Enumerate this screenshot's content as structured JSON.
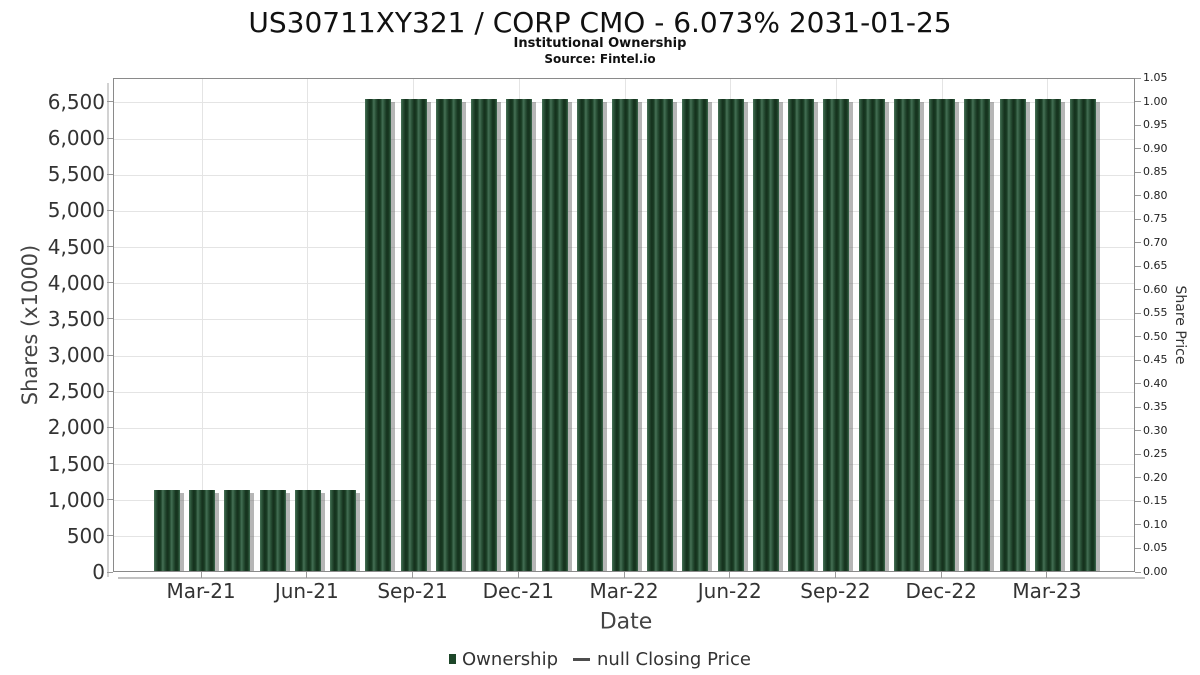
{
  "header": {
    "title": "US30711XY321 / CORP CMO - 6.073% 2031-01-25",
    "subtitle": "Institutional Ownership",
    "source": "Source: Fintel.io"
  },
  "legend": {
    "items": [
      {
        "label": "Ownership",
        "marker": "square",
        "color": "#1d4629"
      },
      {
        "label": "null Closing Price",
        "marker": "line",
        "color": "#4d4d4d"
      }
    ]
  },
  "colors": {
    "bar_dark_green": "#15311d",
    "bar_light_green": "#477257",
    "bar_shadow": "#6e6e6e",
    "gridline": "#e4e4e4",
    "plot_border": "#8a8a8a",
    "text_primary": "#111111",
    "text_axis": "#444444"
  },
  "chart_data": {
    "type": "bar",
    "title": "US30711XY321 / CORP CMO - 6.073% 2031-01-25",
    "subtitle": "Institutional Ownership",
    "source": "Source: Fintel.io",
    "xlabel": "Date",
    "ylabel": "Shares (x1000)",
    "y2label": "Share Price",
    "units": "shares in thousands",
    "grid": true,
    "legend_position": "bottom",
    "ylim": [
      0,
      6830
    ],
    "y2lim": [
      0,
      1.05
    ],
    "x": [
      "Jan-21",
      "Feb-21",
      "Mar-21",
      "Apr-21",
      "May-21",
      "Jun-21",
      "Jul-21",
      "Aug-21",
      "Sep-21",
      "Oct-21",
      "Nov-21",
      "Dec-21",
      "Jan-22",
      "Feb-22",
      "Mar-22",
      "Apr-22",
      "May-22",
      "Jun-22",
      "Jul-22",
      "Aug-22",
      "Sep-22",
      "Oct-22",
      "Nov-22",
      "Dec-22",
      "Jan-23",
      "Feb-23",
      "Mar-23",
      "Apr-23",
      "May-23"
    ],
    "series": [
      {
        "name": "Ownership",
        "color": "#1d4629",
        "values": [
          null,
          1120,
          1120,
          1120,
          1120,
          1120,
          1120,
          6530,
          6530,
          6530,
          6530,
          6530,
          6530,
          6530,
          6530,
          6530,
          6530,
          6530,
          6530,
          6530,
          6530,
          6530,
          6530,
          6530,
          6530,
          6530,
          6530,
          6530,
          null
        ]
      },
      {
        "name": "null Closing Price",
        "color": "#4d4d4d",
        "values": []
      }
    ],
    "xticks": [
      {
        "slot": 2,
        "label": "Mar-21"
      },
      {
        "slot": 5,
        "label": "Jun-21"
      },
      {
        "slot": 8,
        "label": "Sep-21"
      },
      {
        "slot": 11,
        "label": "Dec-21"
      },
      {
        "slot": 14,
        "label": "Mar-22"
      },
      {
        "slot": 17,
        "label": "Jun-22"
      },
      {
        "slot": 20,
        "label": "Sep-22"
      },
      {
        "slot": 23,
        "label": "Dec-22"
      },
      {
        "slot": 26,
        "label": "Mar-23"
      }
    ],
    "yticks": [
      {
        "value": 0,
        "label": "0"
      },
      {
        "value": 500,
        "label": "500"
      },
      {
        "value": 1000,
        "label": "1,000"
      },
      {
        "value": 1500,
        "label": "1,500"
      },
      {
        "value": 2000,
        "label": "2,000"
      },
      {
        "value": 2500,
        "label": "2,500"
      },
      {
        "value": 3000,
        "label": "3,000"
      },
      {
        "value": 3500,
        "label": "3,500"
      },
      {
        "value": 4000,
        "label": "4,000"
      },
      {
        "value": 4500,
        "label": "4,500"
      },
      {
        "value": 5000,
        "label": "5,000"
      },
      {
        "value": 5500,
        "label": "5,500"
      },
      {
        "value": 6000,
        "label": "6,000"
      },
      {
        "value": 6500,
        "label": "6,500"
      }
    ],
    "y2ticks": [
      {
        "value": 0.0,
        "label": "0.00"
      },
      {
        "value": 0.05,
        "label": "0.05"
      },
      {
        "value": 0.1,
        "label": "0.10"
      },
      {
        "value": 0.15,
        "label": "0.15"
      },
      {
        "value": 0.2,
        "label": "0.20"
      },
      {
        "value": 0.25,
        "label": "0.25"
      },
      {
        "value": 0.3,
        "label": "0.30"
      },
      {
        "value": 0.35,
        "label": "0.35"
      },
      {
        "value": 0.4,
        "label": "0.40"
      },
      {
        "value": 0.45,
        "label": "0.45"
      },
      {
        "value": 0.5,
        "label": "0.50"
      },
      {
        "value": 0.55,
        "label": "0.55"
      },
      {
        "value": 0.6,
        "label": "0.60"
      },
      {
        "value": 0.65,
        "label": "0.65"
      },
      {
        "value": 0.7,
        "label": "0.70"
      },
      {
        "value": 0.75,
        "label": "0.75"
      },
      {
        "value": 0.8,
        "label": "0.80"
      },
      {
        "value": 0.85,
        "label": "0.85"
      },
      {
        "value": 0.9,
        "label": "0.90"
      },
      {
        "value": 0.95,
        "label": "0.95"
      },
      {
        "value": 1.0,
        "label": "1.00"
      },
      {
        "value": 1.05,
        "label": "1.05"
      }
    ]
  }
}
